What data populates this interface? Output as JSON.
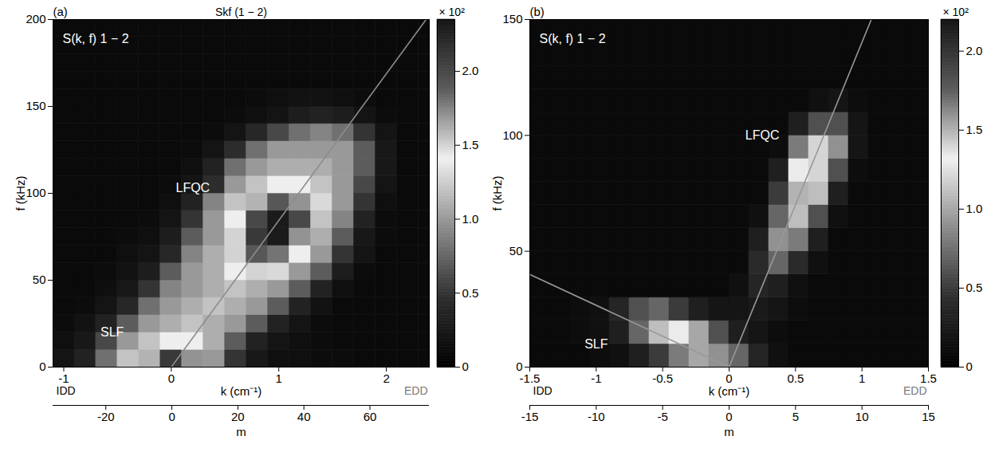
{
  "chart_data": [
    {
      "type": "heatmap",
      "title": "Skf (1 − 2)",
      "panel": "(a)",
      "subtitle": "S(k, f) 1 − 2",
      "x_label": "k (cm⁻¹)",
      "y_label": "f (kHz)",
      "x2_label": "m",
      "x_end_labels": [
        "IDD",
        "EDD"
      ],
      "xlim": [
        -1.1,
        2.4
      ],
      "xticks": [
        -1,
        0,
        1,
        2
      ],
      "ylim": [
        0,
        200
      ],
      "yticks": [
        0,
        50,
        100,
        150,
        200
      ],
      "x2lim": [
        -36,
        78
      ],
      "x2ticks": [
        -20,
        0,
        20,
        40,
        60
      ],
      "annotations": [
        {
          "text": "LFQC",
          "x": 0.2,
          "y": 103
        },
        {
          "text": "SLF",
          "x": -0.55,
          "y": 20
        }
      ],
      "lines": [
        {
          "x": [
            0,
            2.37
          ],
          "y": [
            0,
            200
          ],
          "color": "#8c8c8c"
        }
      ],
      "x_bins": [
        -1.1,
        -0.9,
        -0.7,
        -0.5,
        -0.3,
        -0.1,
        0.1,
        0.3,
        0.5,
        0.7,
        0.9,
        1.1,
        1.3,
        1.5,
        1.7,
        1.9,
        2.1,
        2.3,
        2.5
      ],
      "y_bins": [
        0,
        10,
        20,
        30,
        40,
        50,
        60,
        70,
        80,
        90,
        100,
        110,
        120,
        130,
        140,
        150,
        160,
        170,
        180,
        190,
        200
      ],
      "values": [
        [
          0.2,
          0.35,
          0.8,
          1.2,
          1.6,
          2.1,
          1.7,
          1.0,
          0.5,
          0.25,
          0.15,
          0.15,
          0.12,
          0.12,
          0.1,
          0.1,
          0.1,
          0.1
        ],
        [
          0.15,
          0.25,
          0.6,
          1.0,
          1.2,
          1.4,
          1.4,
          1.1,
          0.7,
          0.35,
          0.2,
          0.15,
          0.12,
          0.1,
          0.1,
          0.1,
          0.1,
          0.1
        ],
        [
          0.12,
          0.18,
          0.35,
          0.7,
          1.0,
          1.1,
          1.2,
          1.1,
          1.0,
          0.7,
          0.35,
          0.2,
          0.12,
          0.1,
          0.1,
          0.1,
          0.1,
          0.1
        ],
        [
          0.1,
          0.12,
          0.2,
          0.4,
          0.8,
          1.0,
          1.1,
          1.2,
          1.1,
          1.0,
          0.7,
          0.35,
          0.18,
          0.1,
          0.1,
          0.1,
          0.1,
          0.1
        ],
        [
          0.1,
          0.1,
          0.15,
          0.25,
          0.5,
          0.9,
          1.0,
          1.1,
          1.2,
          1.1,
          1.0,
          0.7,
          0.35,
          0.15,
          0.1,
          0.1,
          0.1,
          0.1
        ],
        [
          0.1,
          0.1,
          0.12,
          0.18,
          0.3,
          0.7,
          1.0,
          1.1,
          1.4,
          1.5,
          1.3,
          1.0,
          0.7,
          0.3,
          0.12,
          0.1,
          0.1,
          0.1
        ],
        [
          0.1,
          0.1,
          0.1,
          0.15,
          0.2,
          0.4,
          0.9,
          1.1,
          1.5,
          1.9,
          1.8,
          1.4,
          1.0,
          0.5,
          0.2,
          0.1,
          0.1,
          0.1
        ],
        [
          0.1,
          0.1,
          0.1,
          0.12,
          0.15,
          0.3,
          0.7,
          1.0,
          1.5,
          2.1,
          2.3,
          1.7,
          1.1,
          0.7,
          0.25,
          0.12,
          0.1,
          0.1
        ],
        [
          0.1,
          0.1,
          0.1,
          0.1,
          0.12,
          0.2,
          0.5,
          1.0,
          1.4,
          2.0,
          2.3,
          2.0,
          1.2,
          0.9,
          0.35,
          0.12,
          0.1,
          0.1
        ],
        [
          0.1,
          0.1,
          0.1,
          0.1,
          0.1,
          0.15,
          0.35,
          0.9,
          1.2,
          1.6,
          1.9,
          1.7,
          1.3,
          1.0,
          0.5,
          0.15,
          0.1,
          0.1
        ],
        [
          0.1,
          0.1,
          0.1,
          0.1,
          0.1,
          0.12,
          0.2,
          0.45,
          1.0,
          1.2,
          1.4,
          1.4,
          1.2,
          1.0,
          0.6,
          0.2,
          0.1,
          0.1
        ],
        [
          0.1,
          0.1,
          0.1,
          0.1,
          0.1,
          0.1,
          0.15,
          0.35,
          0.8,
          1.0,
          1.1,
          1.1,
          1.1,
          1.0,
          0.7,
          0.25,
          0.1,
          0.1
        ],
        [
          0.1,
          0.1,
          0.1,
          0.1,
          0.1,
          0.1,
          0.12,
          0.2,
          0.45,
          0.8,
          1.0,
          1.0,
          1.0,
          1.0,
          0.7,
          0.25,
          0.1,
          0.1
        ],
        [
          0.1,
          0.1,
          0.1,
          0.1,
          0.1,
          0.1,
          0.1,
          0.12,
          0.2,
          0.4,
          0.6,
          0.8,
          0.9,
          0.8,
          0.5,
          0.2,
          0.1,
          0.1
        ],
        [
          0.1,
          0.1,
          0.1,
          0.1,
          0.1,
          0.1,
          0.1,
          0.1,
          0.12,
          0.15,
          0.2,
          0.3,
          0.35,
          0.3,
          0.2,
          0.12,
          0.1,
          0.1
        ],
        [
          0.1,
          0.1,
          0.1,
          0.1,
          0.1,
          0.1,
          0.1,
          0.1,
          0.1,
          0.12,
          0.15,
          0.18,
          0.18,
          0.15,
          0.12,
          0.1,
          0.1,
          0.1
        ],
        [
          0.1,
          0.1,
          0.1,
          0.1,
          0.1,
          0.1,
          0.1,
          0.1,
          0.1,
          0.1,
          0.1,
          0.1,
          0.1,
          0.1,
          0.1,
          0.1,
          0.1,
          0.1
        ],
        [
          0.1,
          0.1,
          0.1,
          0.1,
          0.1,
          0.1,
          0.1,
          0.1,
          0.1,
          0.1,
          0.1,
          0.1,
          0.1,
          0.1,
          0.1,
          0.1,
          0.1,
          0.1
        ],
        [
          0.1,
          0.1,
          0.1,
          0.1,
          0.1,
          0.1,
          0.1,
          0.1,
          0.1,
          0.1,
          0.1,
          0.1,
          0.1,
          0.1,
          0.1,
          0.1,
          0.1,
          0.1
        ],
        [
          0.1,
          0.1,
          0.1,
          0.1,
          0.1,
          0.1,
          0.1,
          0.1,
          0.1,
          0.1,
          0.1,
          0.1,
          0.1,
          0.1,
          0.1,
          0.1,
          0.1,
          0.1
        ]
      ],
      "colorbar": {
        "range": [
          0,
          2.35
        ],
        "ticks": [
          0,
          0.5,
          {
            "value": 1,
            "label": "1.0"
          },
          1.5,
          {
            "value": 2,
            "label": "2.0"
          }
        ],
        "label": "× 10²",
        "colors": [
          "#000000",
          "#2e2e2e",
          "#8c8c8c",
          "#f0f0f0",
          "#5a5a5a",
          "#141414"
        ]
      }
    },
    {
      "type": "heatmap",
      "panel": "(b)",
      "subtitle": "S(k, f) 1 − 2",
      "x_label": "k (cm⁻¹)",
      "y_label": "f (kHz)",
      "x2_label": "m",
      "x_end_labels": [
        "IDD",
        "EDD"
      ],
      "xlim": [
        -1.5,
        1.5
      ],
      "xticks": [
        -1.5,
        -1,
        -0.5,
        0,
        0.5,
        1,
        1.5
      ],
      "ylim": [
        0,
        150
      ],
      "yticks": [
        0,
        50,
        100,
        150
      ],
      "x2lim": [
        -15,
        15
      ],
      "x2ticks": [
        -15,
        -10,
        -5,
        0,
        5,
        10,
        15
      ],
      "annotations": [
        {
          "text": "LFQC",
          "x": 0.25,
          "y": 100
        },
        {
          "text": "SLF",
          "x": -1.0,
          "y": 10
        }
      ],
      "lines": [
        {
          "x": [
            0,
            1.07
          ],
          "y": [
            0,
            150
          ],
          "color": "#999999"
        },
        {
          "x": [
            -1.5,
            0
          ],
          "y": [
            40,
            0
          ],
          "color": "#999999"
        }
      ],
      "x_bins": [
        -1.5,
        -1.35,
        -1.2,
        -1.05,
        -0.9,
        -0.75,
        -0.6,
        -0.45,
        -0.3,
        -0.15,
        0,
        0.15,
        0.3,
        0.45,
        0.6,
        0.75,
        0.9,
        1.05,
        1.2,
        1.35,
        1.5
      ],
      "y_bins": [
        0,
        10,
        20,
        30,
        40,
        50,
        60,
        70,
        80,
        90,
        100,
        110,
        120,
        130,
        140,
        150
      ],
      "values": [
        [
          0.1,
          0.1,
          0.1,
          0.12,
          0.15,
          0.3,
          0.5,
          0.8,
          1.0,
          0.9,
          0.7,
          0.35,
          0.15,
          0.1,
          0.1,
          0.1,
          0.1,
          0.1,
          0.1,
          0.1
        ],
        [
          0.1,
          0.1,
          0.12,
          0.15,
          0.3,
          0.7,
          1.1,
          1.3,
          1.0,
          0.6,
          0.3,
          0.2,
          0.12,
          0.1,
          0.1,
          0.1,
          0.1,
          0.1,
          0.1,
          0.1
        ],
        [
          0.1,
          0.1,
          0.12,
          0.15,
          0.35,
          0.6,
          0.7,
          0.5,
          0.3,
          0.2,
          0.2,
          0.25,
          0.2,
          0.12,
          0.1,
          0.1,
          0.1,
          0.1,
          0.1,
          0.1
        ],
        [
          0.1,
          0.1,
          0.1,
          0.1,
          0.1,
          0.1,
          0.1,
          0.1,
          0.1,
          0.1,
          0.15,
          0.35,
          0.3,
          0.15,
          0.1,
          0.1,
          0.1,
          0.1,
          0.1,
          0.1
        ],
        [
          0.1,
          0.1,
          0.1,
          0.1,
          0.1,
          0.1,
          0.1,
          0.1,
          0.1,
          0.1,
          0.1,
          0.4,
          0.7,
          0.4,
          0.15,
          0.1,
          0.1,
          0.1,
          0.1,
          0.1
        ],
        [
          0.1,
          0.1,
          0.1,
          0.1,
          0.1,
          0.1,
          0.1,
          0.1,
          0.1,
          0.1,
          0.1,
          0.3,
          0.9,
          0.8,
          0.3,
          0.1,
          0.1,
          0.1,
          0.1,
          0.1
        ],
        [
          0.1,
          0.1,
          0.1,
          0.1,
          0.1,
          0.1,
          0.1,
          0.1,
          0.1,
          0.1,
          0.1,
          0.15,
          0.7,
          1.1,
          0.6,
          0.15,
          0.1,
          0.1,
          0.1,
          0.1
        ],
        [
          0.1,
          0.1,
          0.1,
          0.1,
          0.1,
          0.1,
          0.1,
          0.1,
          0.1,
          0.1,
          0.1,
          0.1,
          0.5,
          1.5,
          1.1,
          0.3,
          0.1,
          0.1,
          0.1,
          0.1
        ],
        [
          0.1,
          0.1,
          0.1,
          0.1,
          0.1,
          0.1,
          0.1,
          0.1,
          0.1,
          0.1,
          0.1,
          0.1,
          0.3,
          1.3,
          1.4,
          0.6,
          0.12,
          0.1,
          0.1,
          0.1
        ],
        [
          0.1,
          0.1,
          0.1,
          0.1,
          0.1,
          0.1,
          0.1,
          0.1,
          0.1,
          0.1,
          0.1,
          0.1,
          0.12,
          0.8,
          1.2,
          0.9,
          0.2,
          0.1,
          0.1,
          0.1
        ],
        [
          0.1,
          0.1,
          0.1,
          0.1,
          0.1,
          0.1,
          0.1,
          0.1,
          0.1,
          0.1,
          0.1,
          0.1,
          0.1,
          0.3,
          0.6,
          0.6,
          0.2,
          0.1,
          0.1,
          0.1
        ],
        [
          0.1,
          0.1,
          0.1,
          0.1,
          0.1,
          0.1,
          0.1,
          0.1,
          0.1,
          0.1,
          0.1,
          0.1,
          0.1,
          0.1,
          0.15,
          0.2,
          0.12,
          0.1,
          0.1,
          0.1
        ],
        [
          0.1,
          0.1,
          0.1,
          0.1,
          0.1,
          0.1,
          0.1,
          0.1,
          0.1,
          0.1,
          0.1,
          0.1,
          0.1,
          0.1,
          0.1,
          0.1,
          0.1,
          0.1,
          0.1,
          0.1
        ],
        [
          0.1,
          0.1,
          0.1,
          0.1,
          0.1,
          0.1,
          0.1,
          0.1,
          0.1,
          0.1,
          0.1,
          0.1,
          0.1,
          0.1,
          0.1,
          0.1,
          0.1,
          0.1,
          0.1,
          0.1
        ],
        [
          0.1,
          0.1,
          0.1,
          0.1,
          0.1,
          0.1,
          0.1,
          0.1,
          0.1,
          0.1,
          0.1,
          0.1,
          0.1,
          0.1,
          0.1,
          0.1,
          0.1,
          0.1,
          0.1,
          0.1
        ]
      ],
      "colorbar": {
        "range": [
          0,
          2.2
        ],
        "ticks": [
          0,
          0.5,
          {
            "value": 1,
            "label": "1.0"
          },
          1.5,
          {
            "value": 2,
            "label": "2.0"
          }
        ],
        "label": "× 10²",
        "colors": [
          "#000000",
          "#2e2e2e",
          "#8c8c8c",
          "#f0f0f0",
          "#5a5a5a",
          "#141414"
        ]
      }
    }
  ]
}
